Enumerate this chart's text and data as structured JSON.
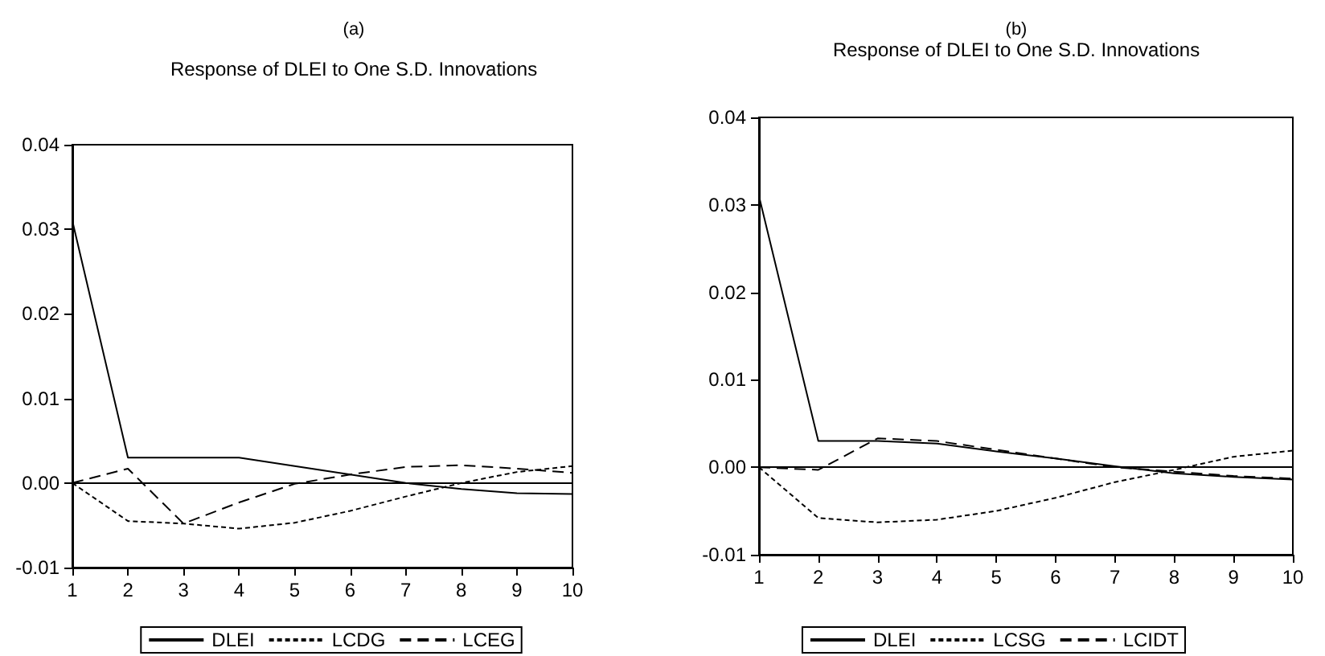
{
  "chart_data": [
    {
      "type": "line",
      "title": "(a)",
      "subtitle": "Response of DLEI to One S.D. Innovations",
      "x": [
        1,
        2,
        3,
        4,
        5,
        6,
        7,
        8,
        9,
        10
      ],
      "xlim": [
        1,
        10
      ],
      "xticks": [
        1,
        2,
        3,
        4,
        5,
        6,
        7,
        8,
        9,
        10
      ],
      "ylim": [
        -0.01,
        0.04
      ],
      "yticks": [
        {
          "value": -0.01,
          "label": "-0.01"
        },
        {
          "value": 0,
          "label": "0.00"
        },
        {
          "value": 0.01,
          "label": "0.01"
        },
        {
          "value": 0.02,
          "label": "0.02"
        },
        {
          "value": 0.03,
          "label": "0.03"
        },
        {
          "value": 0.04,
          "label": "0.04"
        }
      ],
      "grid": false,
      "legend": "bottom",
      "marker": "none",
      "ref_lines": [
        {
          "axis": "y",
          "value": 0,
          "color": "#000000"
        }
      ],
      "series": [
        {
          "name": "DLEI",
          "color": "#000000",
          "line_style": "solid",
          "values": [
            0.031,
            0.003,
            0.003,
            0.003,
            0.002,
            0.001,
            0.0,
            -0.0007,
            -0.0012,
            -0.0013
          ]
        },
        {
          "name": "LCDG",
          "color": "#000000",
          "line_style": "dotted",
          "values": [
            0,
            -0.0045,
            -0.0048,
            -0.0054,
            -0.0047,
            -0.0033,
            -0.0016,
            0.0,
            0.0013,
            0.002
          ]
        },
        {
          "name": "LCEG",
          "color": "#000000",
          "line_style": "dashed",
          "values": [
            0,
            0.0017,
            -0.0048,
            -0.0023,
            -0.0001,
            0.001,
            0.0019,
            0.0021,
            0.0017,
            0.0012
          ]
        }
      ]
    },
    {
      "type": "line",
      "title": "(b)",
      "subtitle": "Response of DLEI to One S.D. Innovations",
      "x": [
        1,
        2,
        3,
        4,
        5,
        6,
        7,
        8,
        9,
        10
      ],
      "xlim": [
        1,
        10
      ],
      "xticks": [
        1,
        2,
        3,
        4,
        5,
        6,
        7,
        8,
        9,
        10
      ],
      "ylim": [
        -0.01,
        0.04
      ],
      "yticks": [
        {
          "value": -0.01,
          "label": "-0.01"
        },
        {
          "value": 0,
          "label": "0.00"
        },
        {
          "value": 0.01,
          "label": "0.01"
        },
        {
          "value": 0.02,
          "label": "0.02"
        },
        {
          "value": 0.03,
          "label": "0.03"
        },
        {
          "value": 0.04,
          "label": "0.04"
        }
      ],
      "grid": false,
      "legend": "bottom",
      "marker": "none",
      "ref_lines": [
        {
          "axis": "y",
          "value": 0,
          "color": "#000000"
        }
      ],
      "series": [
        {
          "name": "DLEI",
          "color": "#000000",
          "line_style": "solid",
          "values": [
            0.031,
            0.003,
            0.003,
            0.0027,
            0.0018,
            0.001,
            0.0001,
            -0.0007,
            -0.0011,
            -0.0014
          ]
        },
        {
          "name": "LCSG",
          "color": "#000000",
          "line_style": "dotted",
          "values": [
            0,
            -0.0058,
            -0.0063,
            -0.006,
            -0.005,
            -0.0035,
            -0.0017,
            -0.0003,
            0.0012,
            0.0019
          ]
        },
        {
          "name": "LCIDT",
          "color": "#000000",
          "line_style": "dashed",
          "values": [
            0,
            -0.0003,
            0.0033,
            0.003,
            0.002,
            0.001,
            0.0,
            -0.0005,
            -0.001,
            -0.0013
          ]
        }
      ]
    }
  ]
}
